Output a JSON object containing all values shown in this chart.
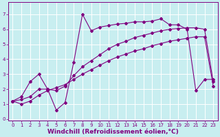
{
  "background_color": "#c8eef0",
  "grid_color": "#ffffff",
  "line_color": "#800080",
  "xlabel": "Windchill (Refroidissement éolien,°C)",
  "xlabel_color": "#800080",
  "ylim": [
    -0.1,
    7.8
  ],
  "xlim": [
    -0.5,
    23.5
  ],
  "yticks": [
    0,
    1,
    2,
    3,
    4,
    5,
    6,
    7
  ],
  "xticks": [
    0,
    1,
    2,
    3,
    4,
    5,
    6,
    7,
    8,
    9,
    10,
    11,
    12,
    13,
    14,
    15,
    16,
    17,
    18,
    19,
    20,
    21,
    22,
    23
  ],
  "line1_x": [
    0,
    1,
    2,
    3,
    4,
    5,
    6,
    7,
    8,
    9,
    10,
    11,
    12,
    13,
    14,
    15,
    16,
    17,
    18,
    19,
    20,
    21,
    22,
    23
  ],
  "line1_y": [
    1.2,
    1.5,
    2.5,
    3.0,
    2.0,
    0.6,
    1.1,
    3.8,
    7.0,
    5.9,
    6.15,
    6.25,
    6.35,
    6.4,
    6.5,
    6.5,
    6.55,
    6.7,
    6.3,
    6.3,
    6.0,
    1.9,
    2.65,
    2.65
  ],
  "line2_x": [
    0,
    1,
    2,
    3,
    4,
    5,
    6,
    7,
    8,
    9,
    10,
    11,
    12,
    13,
    14,
    15,
    16,
    17,
    18,
    19,
    20,
    21,
    22,
    23
  ],
  "line2_y": [
    1.2,
    1.3,
    1.5,
    2.0,
    2.0,
    1.9,
    2.2,
    2.9,
    3.5,
    3.9,
    4.3,
    4.7,
    5.0,
    5.2,
    5.45,
    5.6,
    5.75,
    5.9,
    6.0,
    6.05,
    6.1,
    6.1,
    6.0,
    2.5
  ],
  "line3_x": [
    0,
    1,
    2,
    3,
    4,
    5,
    6,
    7,
    8,
    9,
    10,
    11,
    12,
    13,
    14,
    15,
    16,
    17,
    18,
    19,
    20,
    21,
    22,
    23
  ],
  "line3_y": [
    1.2,
    1.0,
    1.2,
    1.6,
    1.9,
    2.1,
    2.3,
    2.65,
    3.0,
    3.3,
    3.6,
    3.9,
    4.15,
    4.35,
    4.55,
    4.7,
    4.9,
    5.05,
    5.2,
    5.3,
    5.4,
    5.5,
    5.5,
    2.2
  ],
  "marker": "D",
  "markersize": 2.0,
  "linewidth": 0.8,
  "tick_fontsize": 5,
  "xlabel_fontsize": 6.5
}
